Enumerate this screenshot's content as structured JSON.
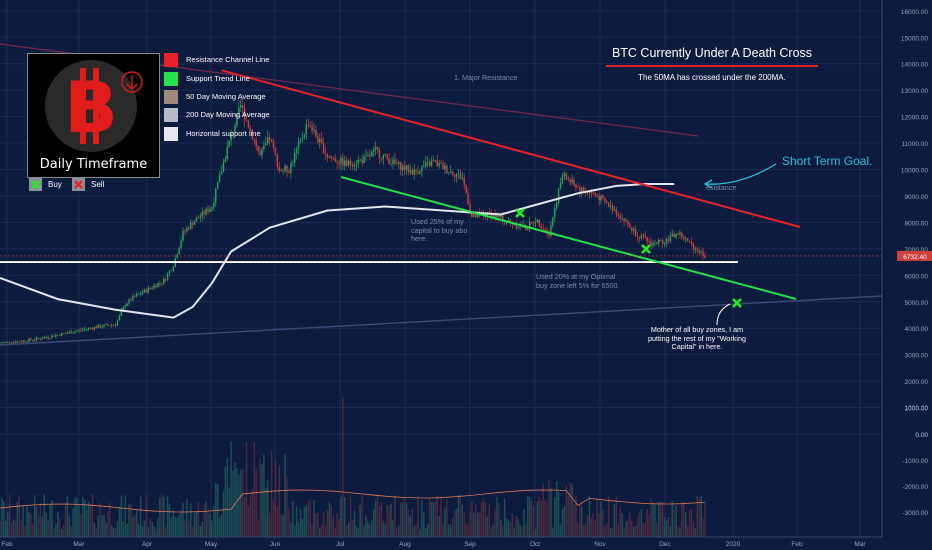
{
  "chart_data": {
    "type": "candlestick",
    "title": "BTC Currently Under A Death Cross",
    "subtitle": "The 50MA has crossed under the 200MA.",
    "timeframe": "Daily Timeframe",
    "x_ticks": [
      "Feb",
      "Mar",
      "Apr",
      "May",
      "Jun",
      "Jul",
      "Aug",
      "Sep",
      "Oct",
      "Nov",
      "Dec",
      "2020",
      "Feb",
      "Mar"
    ],
    "price_ticks": [
      "16000.00",
      "15000.00",
      "14000.00",
      "13000.00",
      "12000.00",
      "11000.00",
      "10000.00",
      "9000.00",
      "8000.00",
      "7000.00",
      "6000.00",
      "5000.00",
      "4000.00",
      "3000.00",
      "2000.00",
      "1000.00",
      "0.00"
    ],
    "volume_ticks": [
      "1000.00",
      "0.00",
      "-1000.00",
      "-2000.00",
      "-3000.00"
    ],
    "price_ylim": [
      0,
      16500
    ],
    "last_price": "6732.40",
    "price_points": [
      [
        0,
        3450
      ],
      [
        10,
        3500
      ],
      [
        20,
        3600
      ],
      [
        30,
        3750
      ],
      [
        40,
        3900
      ],
      [
        50,
        4050
      ],
      [
        60,
        4150
      ],
      [
        65,
        4900
      ],
      [
        70,
        5200
      ],
      [
        80,
        5600
      ],
      [
        85,
        5800
      ],
      [
        90,
        6400
      ],
      [
        95,
        7600
      ],
      [
        100,
        8000
      ],
      [
        110,
        8600
      ],
      [
        118,
        10800
      ],
      [
        125,
        12400
      ],
      [
        130,
        11500
      ],
      [
        135,
        10500
      ],
      [
        140,
        11200
      ],
      [
        145,
        10000
      ],
      [
        150,
        10000
      ],
      [
        160,
        11800
      ],
      [
        170,
        10500
      ],
      [
        180,
        10200
      ],
      [
        190,
        10400
      ],
      [
        195,
        10700
      ],
      [
        205,
        10200
      ],
      [
        215,
        9900
      ],
      [
        225,
        10300
      ],
      [
        232,
        10000
      ],
      [
        240,
        9700
      ],
      [
        245,
        8200
      ],
      [
        255,
        8300
      ],
      [
        265,
        8000
      ],
      [
        273,
        7800
      ],
      [
        278,
        8100
      ],
      [
        285,
        7600
      ],
      [
        292,
        9800
      ],
      [
        300,
        9300
      ],
      [
        310,
        9000
      ],
      [
        320,
        8400
      ],
      [
        330,
        7600
      ],
      [
        338,
        7200
      ],
      [
        345,
        7300
      ],
      [
        352,
        7600
      ],
      [
        358,
        7200
      ],
      [
        366,
        6750
      ]
    ],
    "ma200": [
      [
        0,
        5900
      ],
      [
        30,
        5100
      ],
      [
        60,
        4700
      ],
      [
        90,
        4400
      ],
      [
        100,
        4800
      ],
      [
        110,
        5700
      ],
      [
        120,
        6900
      ],
      [
        140,
        7800
      ],
      [
        170,
        8450
      ],
      [
        200,
        8600
      ],
      [
        230,
        8450
      ],
      [
        260,
        8300
      ],
      [
        280,
        8700
      ],
      [
        300,
        9100
      ],
      [
        320,
        9380
      ],
      [
        335,
        9450
      ],
      [
        350,
        9450
      ]
    ],
    "resistance_channel": [
      [
        115,
        13750
      ],
      [
        395,
        7900
      ]
    ],
    "support_trend": [
      [
        128,
        9700
      ],
      [
        400,
        5100
      ]
    ],
    "horizontal_support": 6500,
    "short_term_goal": 9450,
    "buy_points": [
      [
        0.0,
        8400
      ],
      [
        0.0,
        6950
      ],
      [
        0.0,
        4950
      ]
    ],
    "legend": [
      {
        "label": "Resistance Channel Line",
        "color": "#e8222a"
      },
      {
        "label": "Support Trend Line",
        "color": "#22e24a"
      },
      {
        "label": "50 Day Moving Average",
        "color": "#a08a80"
      },
      {
        "label": "200 Day Moving Average",
        "color": "#b8bcc8"
      },
      {
        "label": "Horizontal support line",
        "color": "#e8e8ec"
      }
    ],
    "markers": [
      {
        "label": "Buy",
        "color": "#22ee22"
      },
      {
        "label": "Sell",
        "color": "#ee2222"
      }
    ],
    "annotations": [
      {
        "text": "Short Term Goal.",
        "color": "#26c2d8"
      },
      {
        "text": "Mother of all buy zones, I am putting the rest of my \"Working Capital\" in here.",
        "color": "#ffffff"
      },
      {
        "text": "Used 25% of my capital to buy abo here.",
        "color": "#7f8aa8"
      },
      {
        "text": "Used 20% at my Optimal buy zone left 5% for 6500.",
        "color": "#7f8aa8"
      },
      {
        "text": "1. Major Resistance",
        "color": "#7f8aa8"
      },
      {
        "text": "esistance",
        "color": "#7f8aa8"
      }
    ]
  }
}
